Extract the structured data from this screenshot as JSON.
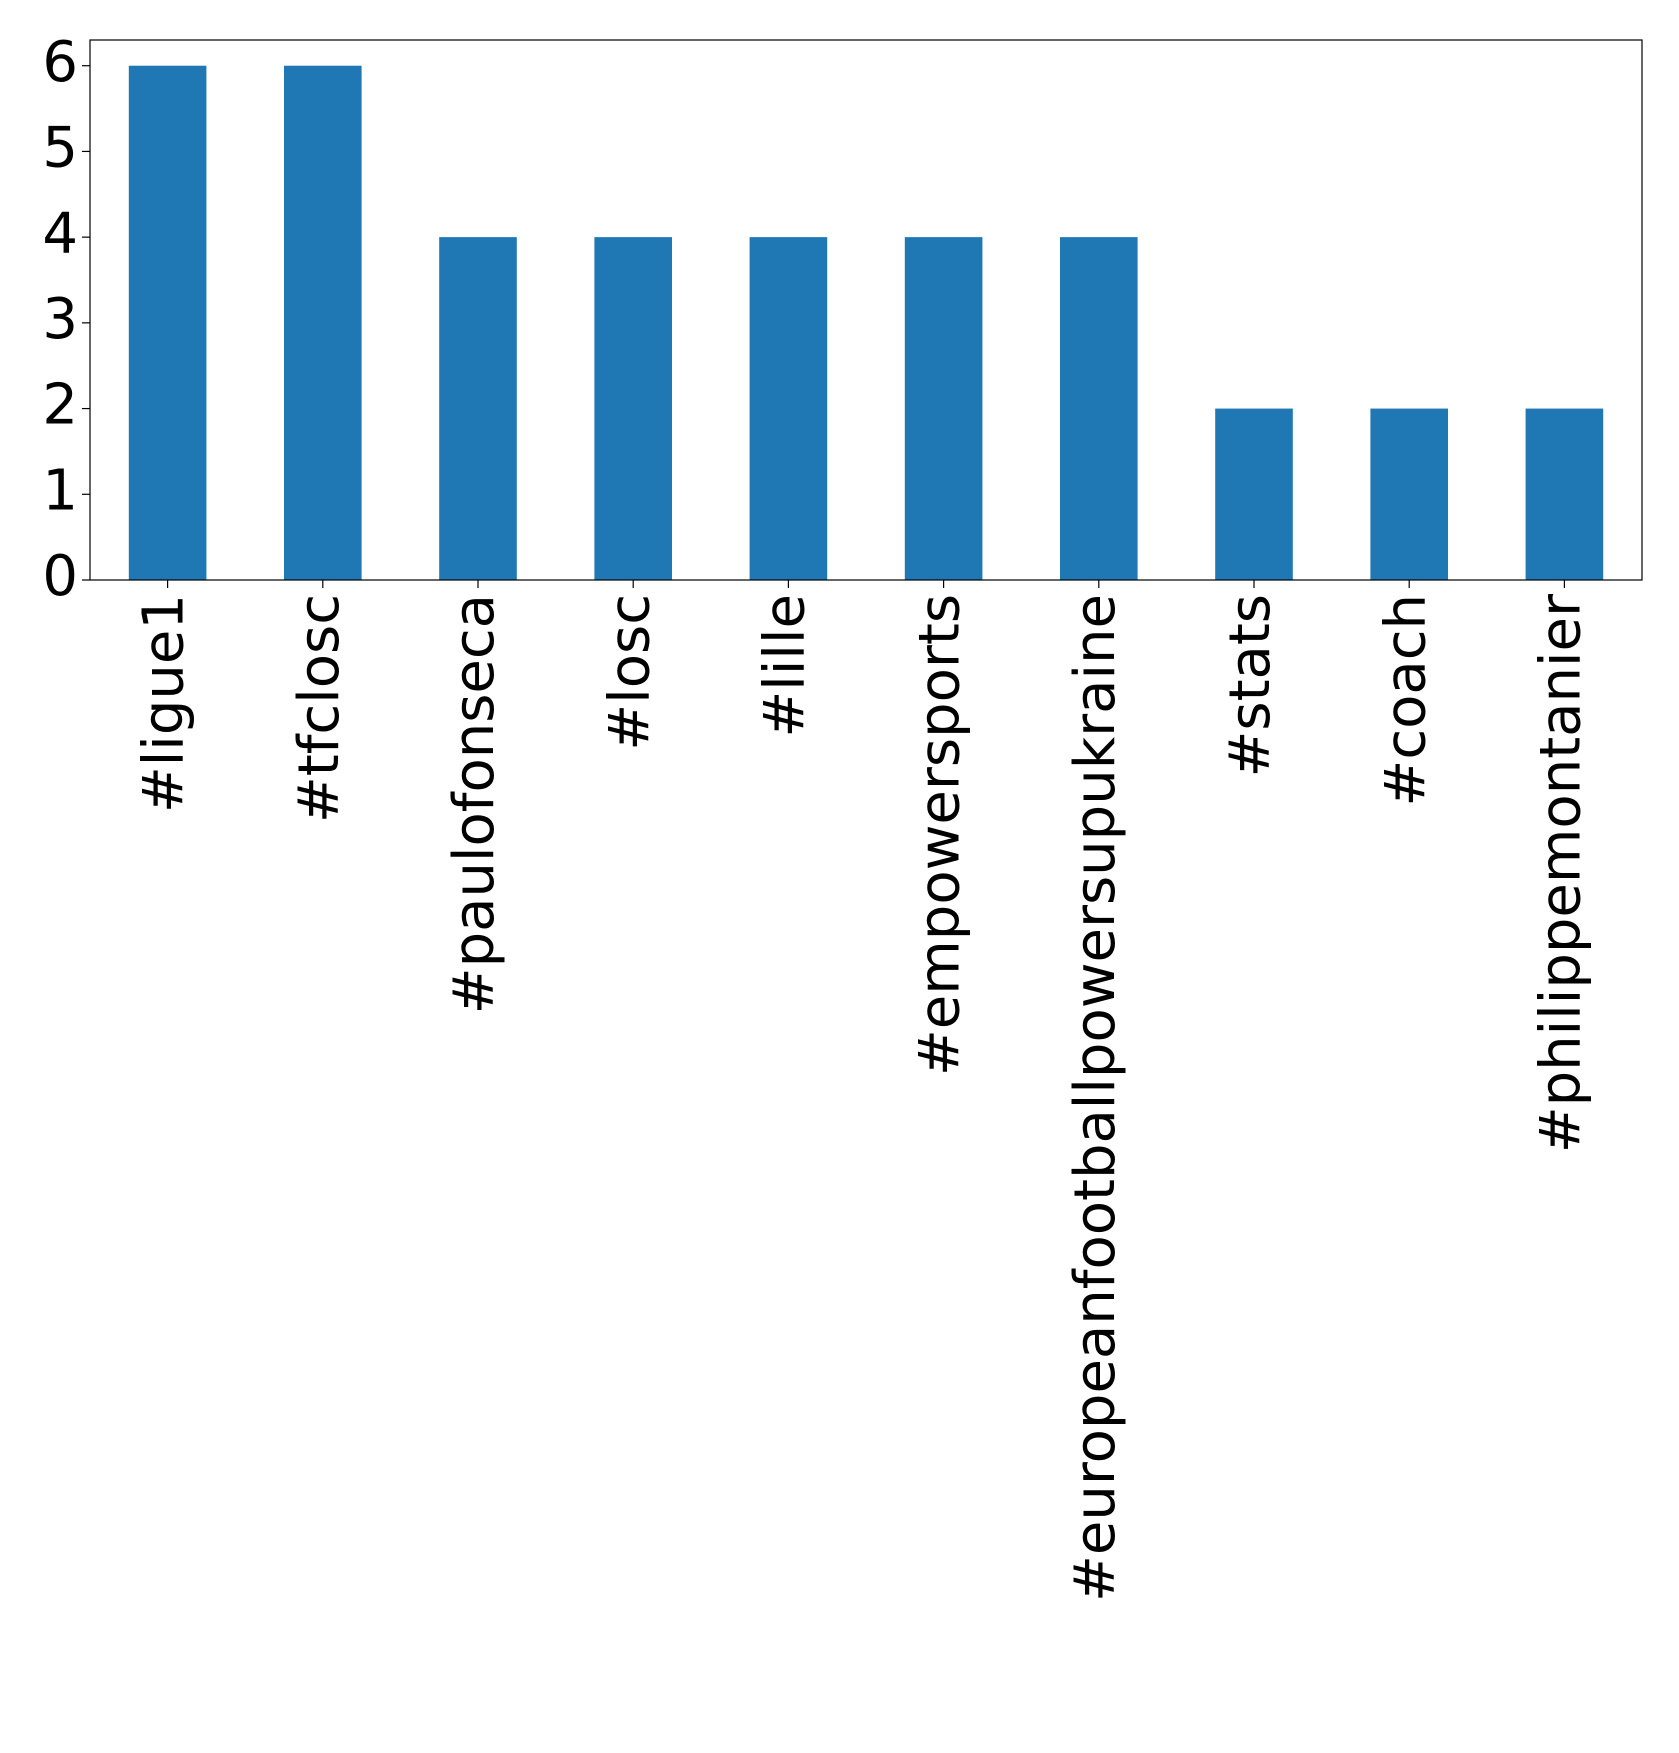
{
  "chart_data": {
    "type": "bar",
    "categories": [
      "#ligue1",
      "#tfclosc",
      "#paulofonseca",
      "#losc",
      "#lille",
      "#empowersports",
      "#europeanfootballpowersupukraine",
      "#stats",
      "#coach",
      "#philippemontanier"
    ],
    "values": [
      6,
      6,
      4,
      4,
      4,
      4,
      4,
      2,
      2,
      2
    ],
    "color": "#1f77b4",
    "ylim": [
      0,
      6.3
    ],
    "yticks": [
      0,
      1,
      2,
      3,
      4,
      5,
      6
    ],
    "grid": false
  }
}
